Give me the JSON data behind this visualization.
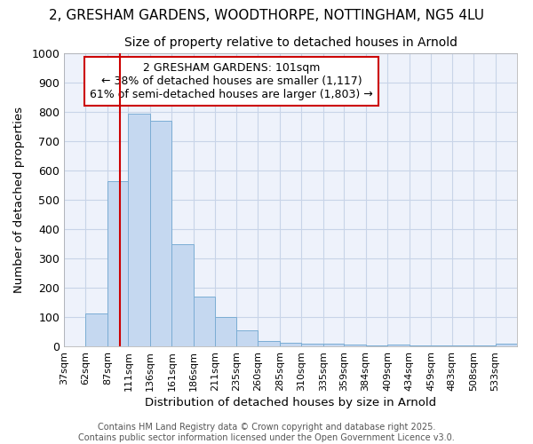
{
  "title_line1": "2, GRESHAM GARDENS, WOODTHORPE, NOTTINGHAM, NG5 4LU",
  "title_line2": "Size of property relative to detached houses in Arnold",
  "xlabel": "Distribution of detached houses by size in Arnold",
  "ylabel": "Number of detached properties",
  "bins": [
    "37sqm",
    "62sqm",
    "87sqm",
    "111sqm",
    "136sqm",
    "161sqm",
    "186sqm",
    "211sqm",
    "235sqm",
    "260sqm",
    "285sqm",
    "310sqm",
    "335sqm",
    "359sqm",
    "384sqm",
    "409sqm",
    "434sqm",
    "459sqm",
    "483sqm",
    "508sqm",
    "533sqm"
  ],
  "values": [
    0,
    113,
    563,
    793,
    770,
    350,
    170,
    100,
    55,
    18,
    13,
    10,
    8,
    5,
    3,
    5,
    3,
    3,
    3,
    3,
    8
  ],
  "bin_edges": [
    37,
    62,
    87,
    111,
    136,
    161,
    186,
    211,
    235,
    260,
    285,
    310,
    335,
    359,
    384,
    409,
    434,
    459,
    483,
    508,
    533,
    558
  ],
  "bar_color": "#c5d8f0",
  "bar_edge_color": "#7badd4",
  "vline_x": 101,
  "vline_color": "#cc0000",
  "ylim": [
    0,
    1000
  ],
  "yticks": [
    0,
    100,
    200,
    300,
    400,
    500,
    600,
    700,
    800,
    900,
    1000
  ],
  "annotation_text": "2 GRESHAM GARDENS: 101sqm\n← 38% of detached houses are smaller (1,117)\n61% of semi-detached houses are larger (1,803) →",
  "annotation_box_color": "#cc0000",
  "grid_color": "#c8d4e8",
  "bg_color": "#eef2fb",
  "footer_line1": "Contains HM Land Registry data © Crown copyright and database right 2025.",
  "footer_line2": "Contains public sector information licensed under the Open Government Licence v3.0.",
  "title_fontsize": 11,
  "subtitle_fontsize": 10,
  "annotation_fontsize": 9,
  "footer_fontsize": 7
}
